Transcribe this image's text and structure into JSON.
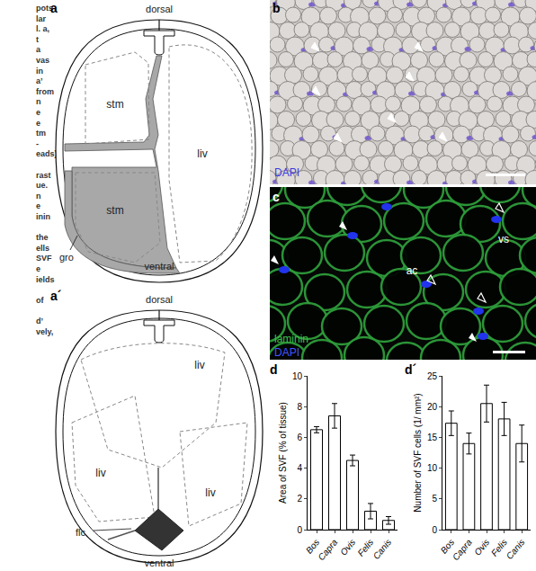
{
  "caption_fragments": [
    [
      "pots",
      "lar",
      "l. a,",
      "t",
      "a",
      "vas",
      "in",
      "a’",
      "from",
      "n",
      "e",
      "e",
      "tm",
      "-",
      "eads)"
    ],
    [
      "rast",
      "ue.",
      "n",
      "e",
      "inin"
    ],
    [
      "the",
      "ells",
      "SVF",
      "e",
      "ields"
    ],
    [
      "of"
    ],
    [
      "d’",
      "vely,"
    ]
  ],
  "panels": {
    "a": {
      "label": "a",
      "dorsal": "dorsal",
      "ventral": "ventral",
      "organs": [
        "stm",
        "stm",
        "liv"
      ],
      "pointer": "gro"
    },
    "a_prime": {
      "label": "a´",
      "dorsal": "dorsal",
      "ventral": "ventral",
      "organs": [
        "liv",
        "liv",
        "liv"
      ],
      "pointer": "flc"
    },
    "b": {
      "label": "b",
      "stain": "DAPI"
    },
    "c": {
      "label": "c",
      "stains": [
        "laminin",
        "DAPI"
      ],
      "regions": [
        "vs",
        "ac"
      ]
    }
  },
  "chart_data": [
    {
      "type": "bar",
      "label": "d",
      "categories": [
        "Bos",
        "Capra",
        "Ovis",
        "Felis",
        "Canis"
      ],
      "values": [
        6.5,
        7.4,
        4.5,
        1.2,
        0.6
      ],
      "errors": [
        0.2,
        0.8,
        0.35,
        0.5,
        0.25
      ],
      "ylabel": "Area of SVF (% of tissue)",
      "ylim": [
        0,
        10
      ],
      "yticks": [
        0,
        2,
        4,
        6,
        8,
        10
      ],
      "color": "#ffffff",
      "grid": false
    },
    {
      "type": "bar",
      "label": "d´",
      "categories": [
        "Bos",
        "Capra",
        "Ovis",
        "Felis",
        "Canis"
      ],
      "values": [
        17.3,
        14,
        20.5,
        18,
        14
      ],
      "errors": [
        2,
        1.7,
        3,
        2.7,
        3
      ],
      "ylabel": "Number of SVF cells (1/ mm²)",
      "ylim": [
        0,
        25
      ],
      "yticks": [
        0,
        5,
        10,
        15,
        20,
        25
      ],
      "color": "#ffffff",
      "grid": false
    }
  ]
}
